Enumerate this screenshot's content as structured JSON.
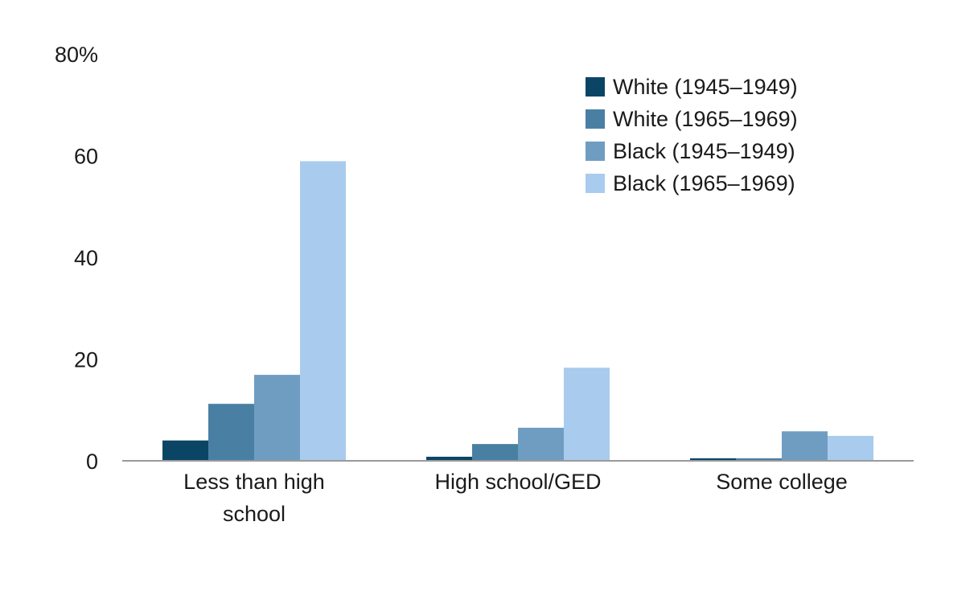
{
  "chart_data": {
    "type": "bar",
    "categories": [
      [
        "Less than high",
        "school"
      ],
      [
        "High school/GED"
      ],
      [
        "Some college"
      ]
    ],
    "series": [
      {
        "name": "White (1945–1949)",
        "color": "#0b4566",
        "values": [
          4.0,
          0.8,
          0.5
        ]
      },
      {
        "name": "White (1965–1969)",
        "color": "#4a7fa4",
        "values": [
          11.2,
          3.3,
          0.5
        ]
      },
      {
        "name": "Black (1945–1949)",
        "color": "#6f9dc2",
        "values": [
          16.9,
          6.5,
          5.8
        ]
      },
      {
        "name": "Black (1965–1969)",
        "color": "#a9cbee",
        "values": [
          58.9,
          18.3,
          4.9
        ]
      }
    ],
    "y_ticks": [
      "0",
      "20",
      "40",
      "60",
      "80%"
    ],
    "ylim": [
      0,
      80
    ],
    "legend_position": "top-right",
    "grid": false
  }
}
